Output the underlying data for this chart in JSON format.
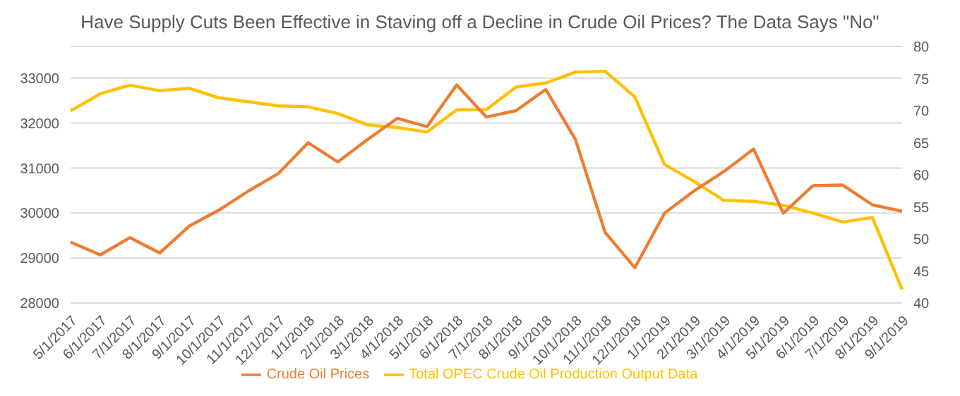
{
  "chart_data": {
    "type": "line",
    "title": "Have Supply Cuts Been Effective in Staving off a Decline in Crude Oil Prices? The Data Says \"No\"",
    "categories": [
      "5/1/2017",
      "6/1/2017",
      "7/1/2017",
      "8/1/2017",
      "9/1/2017",
      "10/1/2017",
      "11/1/2017",
      "12/1/2017",
      "1/1/2018",
      "2/1/2018",
      "3/1/2018",
      "4/1/2018",
      "5/1/2018",
      "6/1/2018",
      "7/1/2018",
      "8/1/2018",
      "9/1/2018",
      "10/1/2018",
      "11/1/2018",
      "12/1/2018",
      "1/1/2019",
      "2/1/2019",
      "3/1/2019",
      "4/1/2019",
      "5/1/2019",
      "6/1/2019",
      "7/1/2019",
      "8/1/2019",
      "9/1/2019"
    ],
    "series": [
      {
        "name": "Total OPEC Crude Oil Production Output Data",
        "color": "#ffc000",
        "values": [
          32270,
          32650,
          32840,
          32720,
          32770,
          32560,
          32470,
          32380,
          32360,
          32210,
          31960,
          31900,
          31800,
          32290,
          32300,
          32800,
          32890,
          33130,
          33150,
          32580,
          31080,
          30700,
          30280,
          30260,
          30170,
          30000,
          29800,
          29900,
          28300
        ]
      },
      {
        "name": "Crude Oil Prices",
        "color": "#ed7d31",
        "axis": "y2",
        "values": [
          49.5,
          47.5,
          50.2,
          47.8,
          52,
          54.5,
          57.5,
          60.2,
          65,
          62,
          65.5,
          68.8,
          67.5,
          74,
          69,
          70,
          73.3,
          65.5,
          51,
          45.5,
          54,
          57.5,
          60.5,
          64,
          54,
          58.3,
          58.4,
          55.3,
          54.3
        ]
      }
    ],
    "ylim": [
      28000,
      33700
    ],
    "yticks": [
      28000,
      29000,
      30000,
      31000,
      32000,
      33000
    ],
    "y2lim": [
      40,
      80
    ],
    "y2ticks": [
      40,
      45,
      50,
      55,
      60,
      65,
      70,
      75,
      80
    ],
    "grid": "y",
    "legend": "bottom",
    "marker": "none",
    "line_style": "solid"
  }
}
